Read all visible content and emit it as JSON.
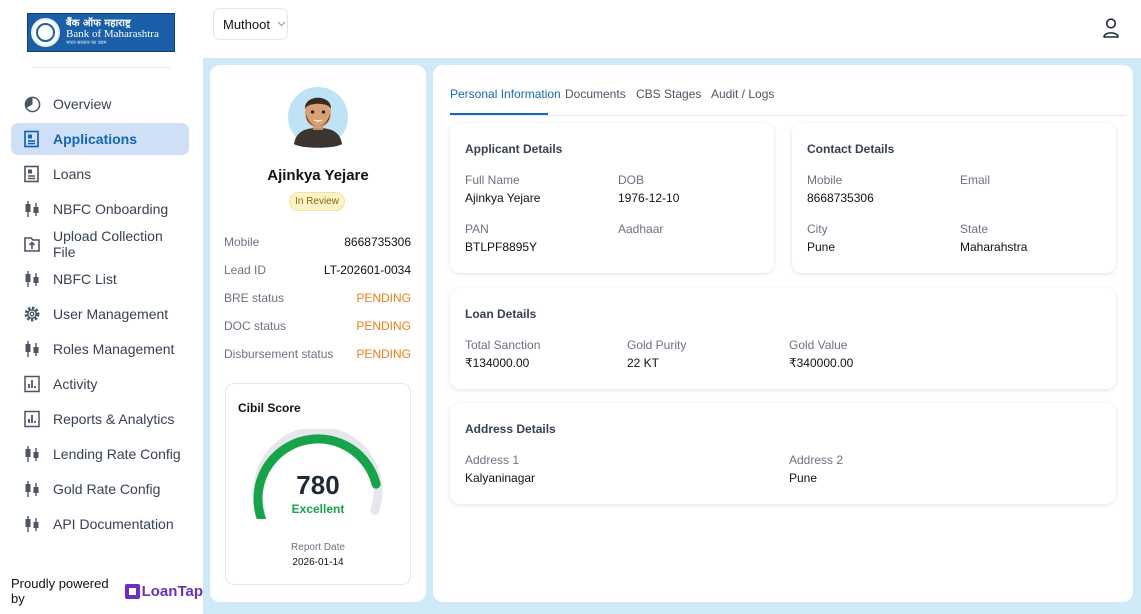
{
  "brand": {
    "name_hindi": "बैंक ऑफ महाराष्ट्र",
    "name_english": "Bank of Maharashtra",
    "tagline": "भारत सरकार का उद्यम"
  },
  "sidebar": {
    "items": [
      {
        "label": "Overview",
        "icon": "pie-chart-icon"
      },
      {
        "label": "Applications",
        "icon": "document-icon",
        "active": true
      },
      {
        "label": "Loans",
        "icon": "document-icon"
      },
      {
        "label": "NBFC Onboarding",
        "icon": "candlestick-icon"
      },
      {
        "label": "Upload Collection File",
        "icon": "upload-icon"
      },
      {
        "label": "NBFC List",
        "icon": "candlestick-icon"
      },
      {
        "label": "User Management",
        "icon": "gear-icon"
      },
      {
        "label": "Roles Management",
        "icon": "candlestick-icon"
      },
      {
        "label": "Activity",
        "icon": "bar-chart-icon"
      },
      {
        "label": "Reports & Analytics",
        "icon": "bar-chart-icon"
      },
      {
        "label": "Lending Rate Config",
        "icon": "candlestick-icon"
      },
      {
        "label": "Gold Rate Config",
        "icon": "candlestick-icon"
      },
      {
        "label": "API Documentation",
        "icon": "candlestick-icon"
      }
    ],
    "powered_by": "Proudly powered by",
    "powered_brand": "LoanTap"
  },
  "topbar": {
    "org_select": "Muthoot"
  },
  "profile": {
    "name": "Ajinkya Yejare",
    "status": "In Review",
    "fields": [
      {
        "label": "Mobile",
        "value": "8668735306"
      },
      {
        "label": "Lead ID",
        "value": "LT-202601-0034"
      },
      {
        "label": "BRE status",
        "value": "PENDING"
      },
      {
        "label": "DOC status",
        "value": "PENDING"
      },
      {
        "label": "Disbursement status",
        "value": "PENDING"
      }
    ],
    "cibil": {
      "title": "Cibil Score",
      "score": "780",
      "rating": "Excellent",
      "report_date_label": "Report Date",
      "report_date": "2026-01-14",
      "fill_fraction": 0.78
    }
  },
  "tabs": [
    "Personal Information",
    "Documents",
    "CBS Stages",
    "Audit / Logs"
  ],
  "applicant": {
    "title": "Applicant Details",
    "full_name_label": "Full Name",
    "full_name": "Ajinkya Yejare",
    "dob_label": "DOB",
    "dob": "1976-12-10",
    "pan_label": "PAN",
    "pan": "BTLPF8895Y",
    "aadhaar_label": "Aadhaar",
    "aadhaar": ""
  },
  "contact": {
    "title": "Contact Details",
    "mobile_label": "Mobile",
    "mobile": "8668735306",
    "email_label": "Email",
    "email": "",
    "city_label": "City",
    "city": "Pune",
    "state_label": "State",
    "state": "Maharahstra"
  },
  "loan": {
    "title": "Loan Details",
    "sanction_label": "Total Sanction",
    "sanction": "₹134000.00",
    "purity_label": "Gold Purity",
    "purity": "22 KT",
    "value_label": "Gold Value",
    "value": "₹340000.00"
  },
  "address": {
    "title": "Address Details",
    "a1_label": "Address 1",
    "a1": "Kalyaninagar",
    "a2_label": "Address 2",
    "a2": "Pune"
  },
  "colors": {
    "accent": "#1466b8",
    "pending": "#ef7d1a",
    "excellent": "#16a34a",
    "content_bg": "#cfe9f7"
  }
}
